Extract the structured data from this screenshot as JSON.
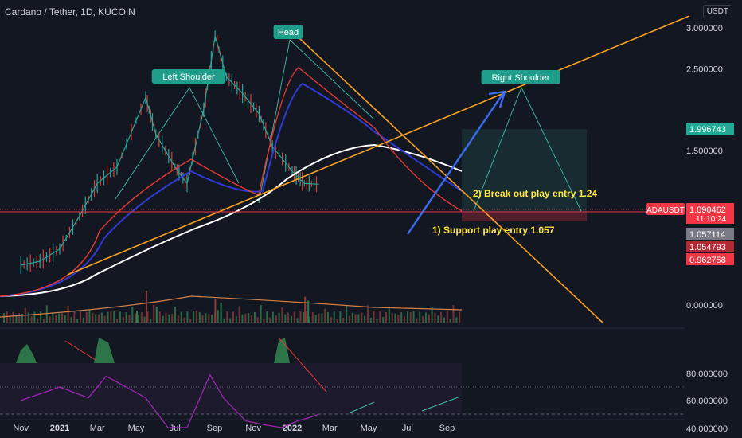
{
  "header": {
    "title": "Cardano / Tether, 1D, KUCOIN",
    "currency": "USDT"
  },
  "colors": {
    "background": "#131722",
    "axis_text": "#d1d4dc",
    "orange": "#f7a221",
    "teal": "#3fbfa6",
    "label_bg": "#1e9e8a",
    "price_red": "#f23645",
    "current_green": "#22ab94",
    "ma_white": "#ffffff",
    "ma_blue": "#2f3bd6",
    "ma_red": "#e53935",
    "volume_green": "#2f7f4e",
    "volume_red": "#8c3b36",
    "rsi_purple": "#9c27b0",
    "annotation_yellow": "#ffeb3b",
    "arrow_blue": "#3a6df0"
  },
  "chart_data": [
    {
      "type": "line",
      "name": "price",
      "y_ticks": [
        "3.000000",
        "2.500000",
        "1.500000",
        "0.000000"
      ],
      "x_ticks": [
        "Nov",
        "2021",
        "Mar",
        "May",
        "Jul",
        "Sep",
        "Nov",
        "2022",
        "Mar",
        "May",
        "Jul",
        "Sep"
      ],
      "ylim": [
        0.1,
        3.3
      ],
      "x": [
        "2020-11-01",
        "2020-12-01",
        "2021-01-01",
        "2021-02-01",
        "2021-03-01",
        "2021-04-01",
        "2021-05-16",
        "2021-06-01",
        "2021-07-01",
        "2021-07-20",
        "2021-08-15",
        "2021-09-02",
        "2021-09-20",
        "2021-10-15",
        "2021-11-10",
        "2021-12-01",
        "2022-01-01",
        "2022-01-20",
        "2022-02-12"
      ],
      "series": [
        {
          "values": [
            0.1,
            0.15,
            0.3,
            0.7,
            1.1,
            1.3,
            2.15,
            1.7,
            1.3,
            1.1,
            2.0,
            2.9,
            2.4,
            2.2,
            1.95,
            1.55,
            1.25,
            1.1,
            1.09
          ]
        }
      ],
      "pattern_labels": [
        "Left Shoulder",
        "Head",
        "Right Shoulder"
      ],
      "annotations": [
        "2) Break out play entry 1.24",
        "1) Support play entry 1.057"
      ],
      "price_tags": [
        {
          "label": "",
          "value": "1.996743"
        },
        {
          "label": "ADAUSDT",
          "value": "1.090462",
          "countdown": "11:10:24"
        },
        {
          "label": "",
          "value": "1.057114"
        },
        {
          "label": "",
          "value": "1.054793"
        },
        {
          "label": "",
          "value": "0.962758"
        }
      ]
    },
    {
      "type": "bar",
      "name": "volume",
      "x": [
        "2021-05-01",
        "2021-05-16",
        "2021-06-01",
        "2021-09-01",
        "2021-09-10",
        "2022-01-20",
        "2022-01-25"
      ],
      "values": [
        0.3,
        0.8,
        0.4,
        0.6,
        0.5,
        0.65,
        0.55
      ]
    },
    {
      "type": "line",
      "name": "rsi",
      "y_ticks": [
        "80.000000",
        "60.000000",
        "40.000000"
      ],
      "ylim": [
        35,
        85
      ],
      "x": [
        "2020-11-01",
        "2021-01-01",
        "2021-02-15",
        "2021-03-15",
        "2021-05-16",
        "2021-06-20",
        "2021-07-20",
        "2021-08-25",
        "2021-09-15",
        "2021-10-20",
        "2021-11-20",
        "2021-12-15",
        "2022-01-10",
        "2022-02-01",
        "2022-02-12"
      ],
      "series": [
        {
          "values": [
            60,
            70,
            62,
            78,
            62,
            40,
            40,
            79,
            62,
            45,
            42,
            40,
            45,
            48,
            50
          ]
        }
      ]
    }
  ]
}
